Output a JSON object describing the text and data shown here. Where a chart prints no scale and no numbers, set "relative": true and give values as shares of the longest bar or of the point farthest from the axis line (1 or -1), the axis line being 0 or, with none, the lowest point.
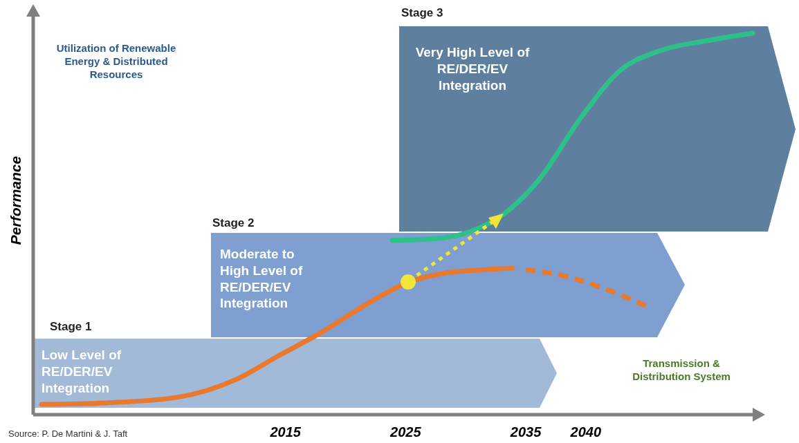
{
  "chart_data": {
    "type": "line",
    "relative": true,
    "ylabel": "Performance",
    "xlim": [
      1994,
      2054
    ],
    "xticks": [
      2015,
      2025,
      2035,
      2040
    ],
    "annotations": [
      "Stage 1",
      "Low Level of RE/DER/EV Integration",
      "Stage 2",
      "Moderate to High Level of RE/DER/EV Integration",
      "Stage 3",
      "Very High Level of RE/DER/EV Integration",
      "Utilization of Renewable Energy & Distributed Resources",
      "Transmission & Distribution System",
      "Source: P. De Martini & J. Taft"
    ],
    "series": [
      {
        "color": "#e8792f",
        "line_style": "solid",
        "x": [
          1994.7,
          2000.1,
          2005.9,
          2011.0,
          2014.4,
          2017.9,
          2021.3,
          2025.3,
          2028.1,
          2031.6,
          2033.9
        ],
        "values": [
          0.027,
          0.031,
          0.045,
          0.094,
          0.154,
          0.214,
          0.281,
          0.348,
          0.37,
          0.38,
          0.384
        ]
      },
      {
        "color": "#e8792f",
        "line_style": "dashed",
        "x": [
          2035.0,
          2038.4,
          2041.9,
          2045.3
        ],
        "values": [
          0.38,
          0.362,
          0.326,
          0.281
        ]
      },
      {
        "color": "#2ec08a",
        "line_style": "solid",
        "x": [
          2023.9,
          2027.0,
          2030.4,
          2033.3,
          2036.1,
          2039.6,
          2043.0,
          2045.9,
          2050.4,
          2053.9
        ],
        "values": [
          0.457,
          0.46,
          0.48,
          0.529,
          0.616,
          0.779,
          0.906,
          0.951,
          0.982,
          1
        ]
      }
    ]
  }
}
